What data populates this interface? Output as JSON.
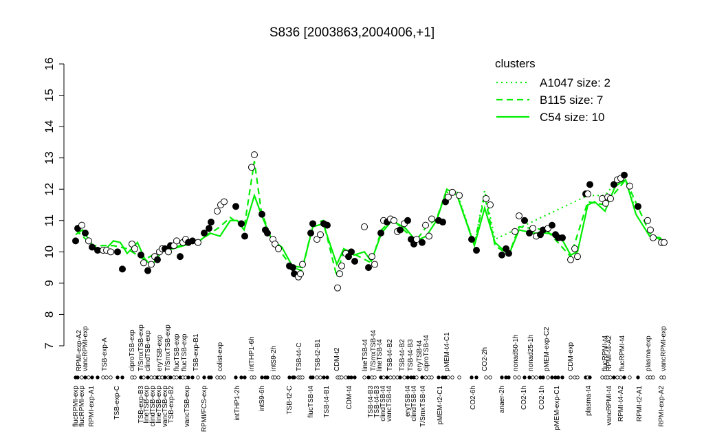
{
  "chart_data": {
    "type": "scatter",
    "title": "S836 [2003863,2004006,+1]",
    "xlim": [
      95,
      975
    ],
    "ylim": [
      7,
      16
    ],
    "yticks": [
      7,
      8,
      9,
      10,
      11,
      12,
      13,
      14,
      15,
      16
    ],
    "points": {
      "x": [
        110,
        113,
        119,
        124,
        129,
        134,
        142,
        150,
        155,
        161,
        171,
        178,
        192,
        196,
        205,
        209,
        215,
        220,
        225,
        229,
        232,
        236,
        240,
        245,
        248,
        253,
        257,
        262,
        266,
        270,
        274,
        280,
        288,
        297,
        304,
        307,
        316,
        321,
        326,
        343,
        351,
        356,
        366,
        370,
        381,
        386,
        389,
        397,
        400,
        405,
        421,
        426,
        428,
        434,
        437,
        440,
        452,
        455,
        461,
        466,
        471,
        476,
        491,
        494,
        497,
        503,
        507,
        511,
        516,
        530,
        536,
        541,
        545,
        554,
        558,
        563,
        568,
        573,
        578,
        582,
        588,
        593,
        598,
        602,
        606,
        614,
        619,
        624,
        628,
        638,
        644,
        648,
        652,
        658,
        668,
        686,
        693,
        707,
        713,
        730,
        736,
        740,
        749,
        755,
        763,
        770,
        775,
        780,
        786,
        790,
        797,
        803,
        808,
        812,
        818,
        830,
        836,
        840,
        852,
        855,
        858,
        876,
        881,
        884,
        888,
        893,
        898,
        903,
        908,
        916,
        928,
        942,
        946,
        950,
        962,
        966
      ],
      "values": [
        10.35,
        10.75,
        10.85,
        10.6,
        10.35,
        10.15,
        10.05,
        10.05,
        10.05,
        10,
        10,
        9.45,
        10.25,
        10.1,
        9.9,
        9.65,
        9.4,
        9.6,
        9.85,
        9.75,
        10,
        10.1,
        10.1,
        10,
        10.2,
        10.2,
        10.35,
        9.85,
        10.3,
        10.4,
        10.3,
        10.35,
        10.3,
        10.6,
        10.75,
        10.95,
        11.3,
        11.5,
        11.6,
        11.45,
        10.9,
        10.5,
        12.7,
        13.1,
        11.2,
        10.7,
        10.6,
        10.4,
        10.25,
        10.1,
        9.55,
        9.5,
        9.3,
        9.2,
        9.3,
        9.6,
        10.6,
        10.9,
        10.4,
        10.55,
        10.9,
        10.85,
        8.85,
        9.3,
        9.55,
        9.95,
        9.85,
        10,
        9.7,
        10.8,
        9.5,
        9.85,
        9.6,
        10.6,
        11,
        10.95,
        11.05,
        11,
        10.65,
        10.7,
        10.9,
        11,
        10.4,
        10.25,
        10.4,
        10.3,
        10.85,
        10.5,
        11.05,
        11,
        10.95,
        11.6,
        11.75,
        11.9,
        11.8,
        10.4,
        10.05,
        11.7,
        11.5,
        9.9,
        10.1,
        9.95,
        10.65,
        11.15,
        11,
        10.6,
        10.75,
        10.5,
        10.55,
        10.7,
        10.75,
        10.85,
        10.55,
        10.45,
        10.45,
        9.75,
        10.1,
        9.85,
        11.85,
        11.85,
        12.15,
        11.7,
        11.55,
        11.75,
        11.7,
        12.15,
        12.3,
        12.35,
        12.45,
        12.1,
        11.45,
        11,
        10.7,
        10.45,
        10.3,
        10.3
      ],
      "filled": [
        1,
        1,
        0,
        1,
        0,
        1,
        1,
        0,
        0,
        0,
        1,
        1,
        0,
        0,
        1,
        0,
        1,
        0,
        0,
        1,
        0,
        0,
        1,
        0,
        1,
        0,
        0,
        1,
        0,
        0,
        1,
        1,
        0,
        1,
        1,
        1,
        0,
        0,
        0,
        1,
        1,
        1,
        0,
        0,
        1,
        1,
        1,
        0,
        0,
        0,
        1,
        1,
        1,
        0,
        0,
        0,
        1,
        1,
        0,
        0,
        1,
        1,
        0,
        0,
        0,
        0,
        1,
        1,
        1,
        0,
        1,
        0,
        0,
        1,
        0,
        1,
        0,
        0,
        0,
        1,
        0,
        1,
        1,
        1,
        0,
        1,
        0,
        0,
        0,
        1,
        1,
        1,
        0,
        0,
        0,
        1,
        1,
        0,
        0,
        1,
        1,
        1,
        0,
        0,
        1,
        1,
        0,
        0,
        1,
        1,
        0,
        1,
        1,
        1,
        1,
        0,
        0,
        0,
        1,
        0,
        1,
        0,
        0,
        0,
        0,
        1,
        0,
        0,
        1,
        0,
        1,
        0,
        0,
        0,
        0,
        0
      ]
    },
    "series": [
      {
        "name": "A1047 size: 2",
        "color": "#00ee00",
        "dash": "2,5",
        "x": [
          650,
          665,
          690,
          705,
          720,
          855,
          880,
          895,
          910,
          925
        ],
        "values": [
          11.9,
          11.9,
          10.2,
          11.95,
          10.4,
          11.8,
          11.8,
          12.2,
          12.3,
          11.3
        ]
      },
      {
        "name": "B115 size: 7",
        "color": "#00ee00",
        "dash": "9,6",
        "x": [
          110,
          135,
          165,
          185,
          210,
          235,
          290,
          320,
          335,
          355,
          370,
          380,
          395,
          425,
          440,
          455,
          470,
          490,
          500,
          540,
          555,
          570,
          605,
          620,
          635,
          650,
          665,
          690,
          705,
          720,
          740,
          755,
          795,
          830,
          855,
          880,
          910,
          945,
          966
        ],
        "values": [
          10.7,
          10.2,
          10.2,
          10.1,
          9.75,
          10.05,
          10.35,
          10.8,
          11.1,
          10.75,
          12.9,
          11.3,
          10.4,
          9.5,
          9.4,
          10.9,
          11,
          9.2,
          10.1,
          9.65,
          10.7,
          11.05,
          10.35,
          10.8,
          11.05,
          12,
          11.8,
          10.25,
          11.8,
          10.2,
          9.9,
          10.8,
          10.7,
          9.85,
          11.6,
          11.5,
          12.3,
          10.6,
          10.3
        ]
      },
      {
        "name": "C54 size: 10",
        "color": "#00ee00",
        "dash": "none",
        "x": [
          110,
          120,
          135,
          150,
          165,
          175,
          185,
          200,
          210,
          220,
          235,
          260,
          290,
          305,
          320,
          335,
          345,
          355,
          370,
          380,
          395,
          410,
          425,
          440,
          455,
          470,
          490,
          500,
          515,
          530,
          540,
          555,
          570,
          590,
          605,
          620,
          635,
          650,
          665,
          690,
          705,
          720,
          740,
          755,
          775,
          795,
          815,
          830,
          840,
          855,
          865,
          880,
          895,
          910,
          925,
          945,
          960,
          966
        ],
        "values": [
          10.55,
          10.7,
          10.2,
          10,
          10.35,
          10.3,
          9.95,
          10.3,
          9.8,
          9.55,
          10,
          10.15,
          10.35,
          10.6,
          10.5,
          11,
          11,
          10.7,
          11.8,
          11.2,
          10.4,
          10.15,
          9.55,
          9.5,
          10.8,
          10.9,
          9.6,
          10.1,
          9.9,
          10,
          9.7,
          10.6,
          11,
          10.75,
          10.35,
          10.5,
          11,
          12,
          11.8,
          10.2,
          11.4,
          10.3,
          9.9,
          10.7,
          10.6,
          10.6,
          10.5,
          9.9,
          10,
          11.5,
          11.6,
          11.3,
          12.1,
          12.3,
          11.2,
          10.5,
          10.45,
          10.3
        ]
      }
    ],
    "legend_title": "clusters",
    "legend_color": "#00ee00",
    "xticks_top": [
      {
        "value": 115,
        "label": "RPMI-exp-A2"
      },
      {
        "value": 124,
        "label": "vancRPMI-exp"
      },
      {
        "value": 152,
        "label": "TSB-exp-A"
      },
      {
        "value": 192,
        "label": "ciproTSB-exp"
      },
      {
        "value": 205,
        "label": "T/SmxTSB-exp"
      },
      {
        "value": 215,
        "label": "clindTSB-exp"
      },
      {
        "value": 232,
        "label": "eryTSB-exp"
      },
      {
        "value": 244,
        "label": "T/SmxTSB-exp"
      },
      {
        "value": 257,
        "label": "flucTSB-exp"
      },
      {
        "value": 268,
        "label": "flucTSB-exp"
      },
      {
        "value": 285,
        "label": "TSB-exp-B1"
      },
      {
        "value": 320,
        "label": "colist-exp"
      },
      {
        "value": 366,
        "label": "intTHP1-6h"
      },
      {
        "value": 398,
        "label": "intS9-2h"
      },
      {
        "value": 435,
        "label": "TSB-t4-C"
      },
      {
        "value": 462,
        "label": "TSB-t2-B1"
      },
      {
        "value": 490,
        "label": "CDM-t2"
      },
      {
        "value": 531,
        "label": "lineTSB-t4"
      },
      {
        "value": 543,
        "label": "T/SmxTSB-t4"
      },
      {
        "value": 552,
        "label": "lineTSB-t4"
      },
      {
        "value": 567,
        "label": "TSB-t4-B2"
      },
      {
        "value": 585,
        "label": "TSB-t4-B2"
      },
      {
        "value": 597,
        "label": "TSB-t4-B3"
      },
      {
        "value": 610,
        "label": "eryTSB-t4"
      },
      {
        "value": 620,
        "label": "ciproTSB-t4"
      },
      {
        "value": 650,
        "label": "pMEM-t4-C1"
      },
      {
        "value": 705,
        "label": "CO2-2h"
      },
      {
        "value": 750,
        "label": "nonad50-1h"
      },
      {
        "value": 772,
        "label": "nonad25-1h"
      },
      {
        "value": 795,
        "label": "pMEM-exp-C2"
      },
      {
        "value": 830,
        "label": "CDM-exp"
      },
      {
        "value": 880,
        "label": "flucRPMI-t4"
      },
      {
        "value": 886,
        "label": "RPMI-t4-A2"
      },
      {
        "value": 905,
        "label": "flucRPMI-t4"
      },
      {
        "value": 943,
        "label": "plasma-exp"
      },
      {
        "value": 965,
        "label": "vancRPMI-exp"
      }
    ],
    "xticks": [
      {
        "value": 110,
        "label": "flucRPMI-exp"
      },
      {
        "value": 119,
        "label": "flucRPMI-exp"
      },
      {
        "value": 133,
        "label": "RPMI-exp-A1"
      },
      {
        "value": 170,
        "label": "TSB-exp-C"
      },
      {
        "value": 205,
        "label": "TSB-exp-B3"
      },
      {
        "value": 213,
        "label": "lineTSB-exp"
      },
      {
        "value": 222,
        "label": "clindTSB-exp"
      },
      {
        "value": 231,
        "label": "lineTSB-exp"
      },
      {
        "value": 240,
        "label": "vancTSB-exp"
      },
      {
        "value": 249,
        "label": "TSB-exp-B2"
      },
      {
        "value": 272,
        "label": "vancTSB-exp"
      },
      {
        "value": 297,
        "label": "RPMI/FCS-exp"
      },
      {
        "value": 345,
        "label": "intTHP1-2h"
      },
      {
        "value": 381,
        "label": "intS9-6h"
      },
      {
        "value": 421,
        "label": "TSB-t2-C"
      },
      {
        "value": 452,
        "label": "flucTSB-t4"
      },
      {
        "value": 475,
        "label": "TSB-t4-B1"
      },
      {
        "value": 508,
        "label": "CDM-t4"
      },
      {
        "value": 539,
        "label": "TSB-t4-B3"
      },
      {
        "value": 548,
        "label": "TSB-t4-B3"
      },
      {
        "value": 557,
        "label": "clindTSB-t4"
      },
      {
        "value": 566,
        "label": "vancTSB-t4"
      },
      {
        "value": 593,
        "label": "eryTSB-t4"
      },
      {
        "value": 602,
        "label": "clindTSB-t4"
      },
      {
        "value": 615,
        "label": "T/SmxTSB-t4"
      },
      {
        "value": 640,
        "label": "pMEM-t2-C1"
      },
      {
        "value": 688,
        "label": "CO2-6h"
      },
      {
        "value": 730,
        "label": "anaer-2h"
      },
      {
        "value": 762,
        "label": "CO2-1h"
      },
      {
        "value": 788,
        "label": "CO2-1h"
      },
      {
        "value": 810,
        "label": "pMEM-exp-C1"
      },
      {
        "value": 856,
        "label": "plasma-t4"
      },
      {
        "value": 886,
        "label": "vancRPMI-t4"
      },
      {
        "value": 903,
        "label": "RPMI-t4-A2"
      },
      {
        "value": 930,
        "label": "RPMI-t2-A1"
      },
      {
        "value": 962,
        "label": "RPMI-exp-A2"
      }
    ]
  }
}
